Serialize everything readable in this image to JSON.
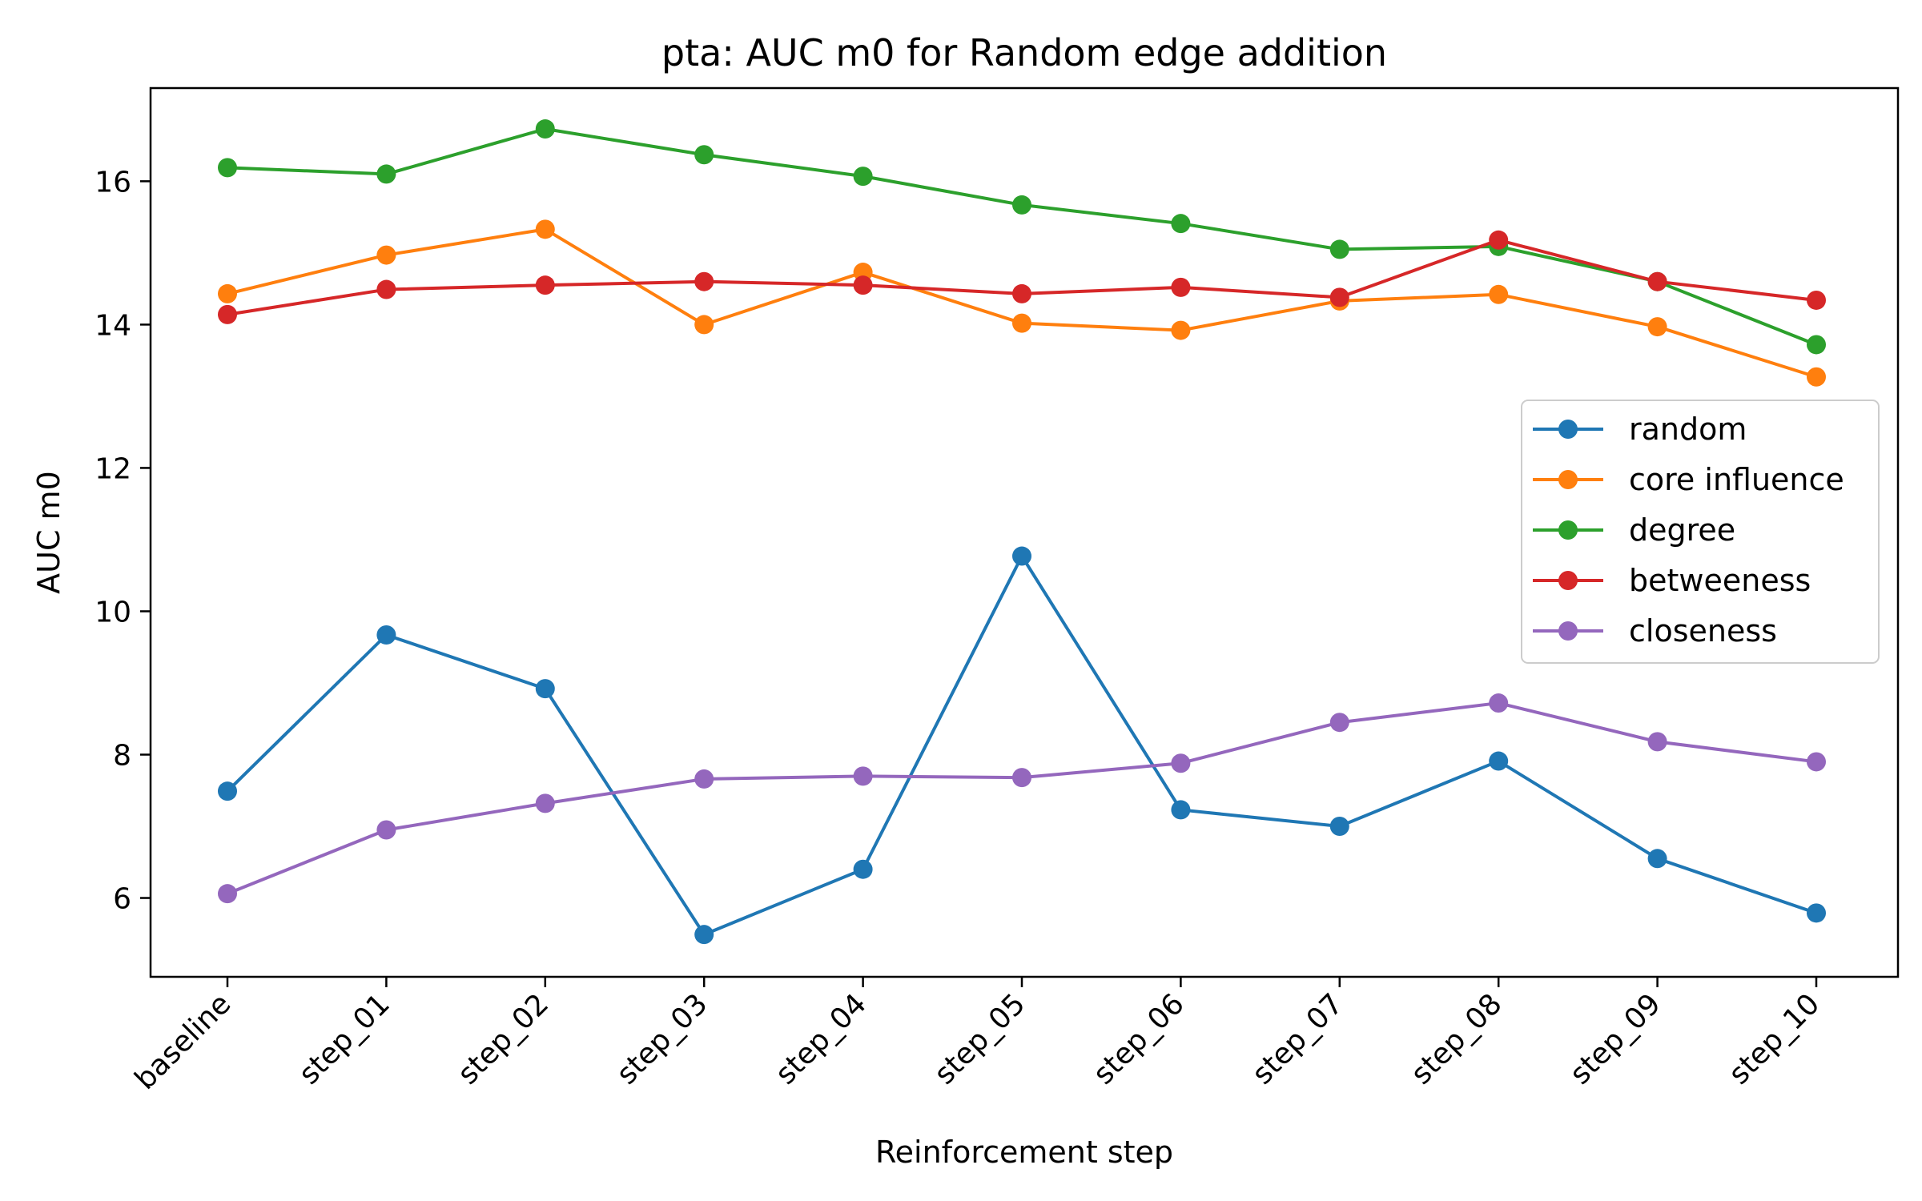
{
  "chart_data": {
    "type": "line",
    "title": "pta: AUC m0 for Random edge addition",
    "xlabel": "Reinforcement step",
    "ylabel": "AUC m0",
    "categories": [
      "baseline",
      "step_01",
      "step_02",
      "step_03",
      "step_04",
      "step_05",
      "step_06",
      "step_07",
      "step_08",
      "step_09",
      "step_10"
    ],
    "ylim": [
      4.9,
      17.3
    ],
    "yticks": [
      6,
      8,
      10,
      12,
      14,
      16
    ],
    "grid": false,
    "legend_position": "center-right",
    "series": [
      {
        "name": "random",
        "color": "#1f77b4",
        "values": [
          7.49,
          9.67,
          8.92,
          5.49,
          6.4,
          10.77,
          7.23,
          7.0,
          7.91,
          6.55,
          5.79
        ]
      },
      {
        "name": "core influence",
        "color": "#ff7f0e",
        "values": [
          14.43,
          14.97,
          15.33,
          14.0,
          14.73,
          14.02,
          13.92,
          14.33,
          14.42,
          13.97,
          13.27
        ]
      },
      {
        "name": "degree",
        "color": "#2ca02c",
        "values": [
          16.19,
          16.1,
          16.73,
          16.37,
          16.07,
          15.67,
          15.41,
          15.05,
          15.09,
          14.6,
          13.72
        ]
      },
      {
        "name": "betweeness",
        "color": "#d62728",
        "values": [
          14.14,
          14.49,
          14.55,
          14.6,
          14.55,
          14.43,
          14.52,
          14.38,
          15.18,
          14.6,
          14.34
        ]
      },
      {
        "name": "closeness",
        "color": "#9467bd",
        "values": [
          6.06,
          6.95,
          7.32,
          7.66,
          7.7,
          7.68,
          7.88,
          8.45,
          8.72,
          8.18,
          7.9
        ]
      }
    ]
  }
}
